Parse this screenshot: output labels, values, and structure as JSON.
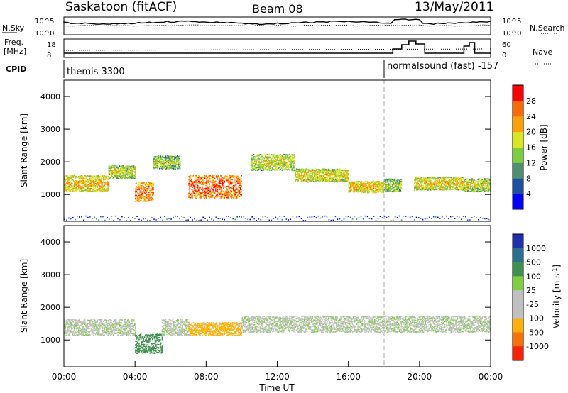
{
  "header": {
    "station": "Saskatoon (fitACF)",
    "beam": "Beam 08",
    "date": "13/May/2011"
  },
  "status_strip": {
    "nsky_label": "N.Sky",
    "nsearch_label": "N.Search",
    "freq_label_line1": "Freq.",
    "freq_label_line2": "[MHz]",
    "nave_label": "Nave",
    "cpid_label": "CPID",
    "noise_ticks": [
      "10^5",
      "10^0"
    ],
    "freq_ticks": [
      "18",
      "8"
    ],
    "nave_ticks": [
      "60",
      "0"
    ],
    "cpid_segments": [
      {
        "start_hour": 0.0,
        "end_hour": 18.0,
        "label": "themis 3300"
      },
      {
        "start_hour": 18.0,
        "end_hour": 24.0,
        "label": "normalsound (fast) -157"
      }
    ]
  },
  "colors": {
    "power_scale": [
      "#0000ff",
      "#1f4fa0",
      "#4f8f6f",
      "#7ccf3c",
      "#d8e81c",
      "#ffa000",
      "#ff6a00",
      "#ff0000"
    ],
    "velocity_scale": [
      "#1f2fb0",
      "#2b6f8f",
      "#3f8f4f",
      "#7fcf3f",
      "#c0c0c0",
      "#c0c0c0",
      "#ffb000",
      "#ff7000",
      "#ff2000"
    ],
    "groundscatter": "#c0c0c0"
  },
  "chart_data": [
    {
      "type": "heatmap",
      "title": "",
      "xlabel": "",
      "ylabel": "Slant Range [km]",
      "xlim_hours": [
        0,
        24
      ],
      "ylim": [
        180,
        4500
      ],
      "y_ticks": [
        1000,
        2000,
        3000,
        4000
      ],
      "colorbar": {
        "label": "Power [dB]",
        "range": [
          0,
          32
        ],
        "ticks": [
          4,
          8,
          12,
          16,
          20,
          24,
          28
        ]
      },
      "scatter_bands": [
        {
          "t_start": 0.0,
          "t_end": 2.5,
          "r_center": 1350,
          "r_width": 500,
          "power_db": 22
        },
        {
          "t_start": 2.5,
          "t_end": 4.0,
          "r_center": 1700,
          "r_width": 400,
          "power_db": 18
        },
        {
          "t_start": 4.0,
          "t_end": 5.0,
          "r_center": 1100,
          "r_width": 600,
          "power_db": 26
        },
        {
          "t_start": 5.0,
          "t_end": 6.5,
          "r_center": 2000,
          "r_width": 400,
          "power_db": 16
        },
        {
          "t_start": 7.0,
          "t_end": 10.0,
          "r_center": 1250,
          "r_width": 700,
          "power_db": 28
        },
        {
          "t_start": 10.5,
          "t_end": 13.0,
          "r_center": 2000,
          "r_width": 500,
          "power_db": 18
        },
        {
          "t_start": 13.0,
          "t_end": 16.0,
          "r_center": 1600,
          "r_width": 400,
          "power_db": 20
        },
        {
          "t_start": 16.0,
          "t_end": 18.0,
          "r_center": 1250,
          "r_width": 350,
          "power_db": 22
        },
        {
          "t_start": 18.0,
          "t_end": 19.0,
          "r_center": 1300,
          "r_width": 400,
          "power_db": 16
        },
        {
          "t_start": 19.7,
          "t_end": 22.5,
          "r_center": 1350,
          "r_width": 400,
          "power_db": 20
        },
        {
          "t_start": 22.5,
          "t_end": 24.0,
          "r_center": 1300,
          "r_width": 400,
          "power_db": 18
        }
      ]
    },
    {
      "type": "heatmap",
      "title": "",
      "xlabel": "Time UT",
      "ylabel": "Slant Range [km]",
      "xlim_hours": [
        0,
        24
      ],
      "ylim": [
        180,
        4500
      ],
      "y_ticks": [
        1000,
        2000,
        3000,
        4000
      ],
      "x_ticks": [
        "00:00",
        "04:00",
        "08:00",
        "12:00",
        "16:00",
        "20:00",
        "00:00"
      ],
      "colorbar": {
        "label": "Velocity [m s^-1]",
        "ticks": [
          1000,
          500,
          100,
          25,
          -25,
          -100,
          -500,
          -1000
        ]
      },
      "scatter_bands": [
        {
          "t_start": 0.0,
          "t_end": 4.0,
          "r_center": 1400,
          "r_width": 500,
          "velocity": 0
        },
        {
          "t_start": 4.0,
          "t_end": 5.5,
          "r_center": 900,
          "r_width": 600,
          "velocity": 200
        },
        {
          "t_start": 5.5,
          "t_end": 7.0,
          "r_center": 1400,
          "r_width": 500,
          "velocity": 0
        },
        {
          "t_start": 7.0,
          "t_end": 10.0,
          "r_center": 1350,
          "r_width": 400,
          "velocity": -150
        },
        {
          "t_start": 10.0,
          "t_end": 24.0,
          "r_center": 1500,
          "r_width": 500,
          "velocity": 0
        }
      ]
    }
  ]
}
